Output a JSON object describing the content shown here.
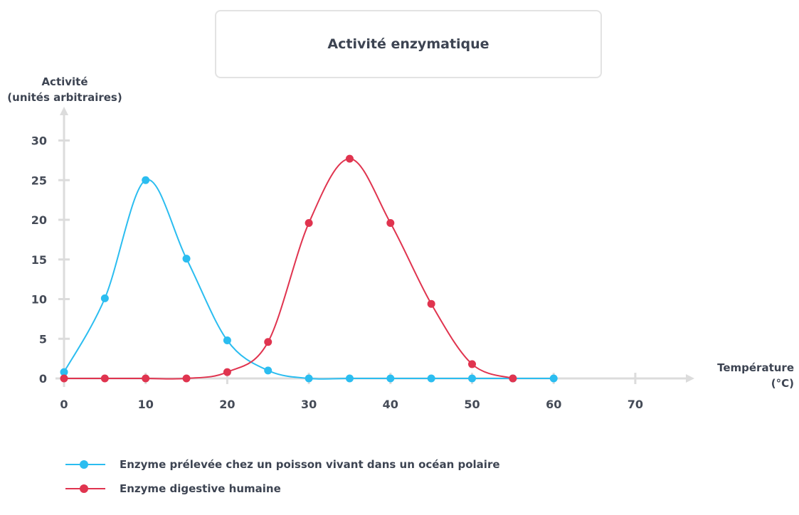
{
  "chart_data": {
    "type": "line",
    "title": "Activité enzymatique",
    "ylabel_line1": "Activité",
    "ylabel_line2": "(unités arbitraires)",
    "xlabel_line1": "Température",
    "xlabel_line2": "(°C)",
    "xlim": [
      0,
      70
    ],
    "ylim": [
      0,
      30
    ],
    "xticks": [
      0,
      10,
      20,
      30,
      40,
      50,
      60,
      70
    ],
    "yticks": [
      0,
      5,
      10,
      15,
      20,
      25,
      30
    ],
    "grid": false,
    "legend_position": "bottom-left",
    "series": [
      {
        "name": "Enzyme prélevée chez un poisson vivant dans un océan polaire",
        "color": "#2bbdf0",
        "x": [
          0,
          5,
          10,
          15,
          20,
          25,
          30,
          35,
          40,
          45,
          50,
          55,
          60
        ],
        "y": [
          0.8,
          10.1,
          25.0,
          15.1,
          4.8,
          1.0,
          0,
          0,
          0,
          0,
          0,
          0,
          0
        ]
      },
      {
        "name": "Enzyme digestive humaine",
        "color": "#e0344f",
        "x": [
          0,
          5,
          10,
          15,
          20,
          25,
          30,
          35,
          40,
          45,
          50,
          55
        ],
        "y": [
          0,
          0,
          0,
          0,
          0.8,
          4.6,
          19.6,
          27.7,
          19.6,
          9.4,
          1.8,
          0
        ]
      }
    ]
  }
}
